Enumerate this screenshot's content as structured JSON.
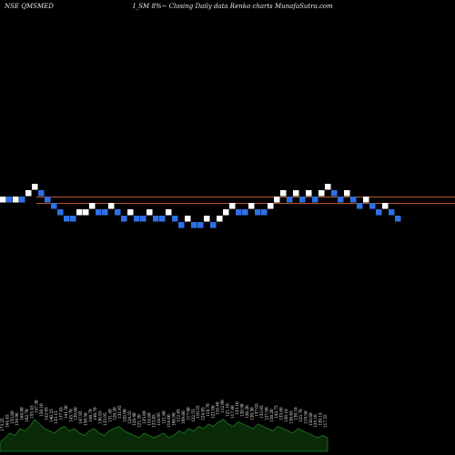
{
  "header": {
    "symbol_text": "NSE QMSMED",
    "title_text": "I_SM 8%~ Closing Daily data  Renko  charts MunafaSutra.com"
  },
  "colors": {
    "background": "#000000",
    "up_brick": "#ffffff",
    "down_brick": "#2f6fe6",
    "reference_line": "#b4562a",
    "volume_fill": "#0a2a0a",
    "volume_stroke": "#1e7a1e",
    "label_text": "#f0f0f0"
  },
  "chart_data": {
    "type": "renko",
    "title": "I_SM 8%~ Closing Daily data  Renko  charts MunafaSutra.com",
    "legend": "none",
    "reference_lines": [
      2,
      1
    ],
    "bricks": [
      {
        "d": "up",
        "v": 1
      },
      {
        "d": "down",
        "v": 1
      },
      {
        "d": "up",
        "v": 1
      },
      {
        "d": "down",
        "v": 1
      },
      {
        "d": "up",
        "v": 2
      },
      {
        "d": "up",
        "v": 3
      },
      {
        "d": "down",
        "v": 2
      },
      {
        "d": "down",
        "v": 1
      },
      {
        "d": "down",
        "v": 0
      },
      {
        "d": "down",
        "v": -1
      },
      {
        "d": "down",
        "v": -2
      },
      {
        "d": "down",
        "v": -2
      },
      {
        "d": "up",
        "v": -1
      },
      {
        "d": "up",
        "v": -1
      },
      {
        "d": "up",
        "v": 0
      },
      {
        "d": "down",
        "v": -1
      },
      {
        "d": "down",
        "v": -1
      },
      {
        "d": "up",
        "v": 0
      },
      {
        "d": "down",
        "v": -1
      },
      {
        "d": "down",
        "v": -2
      },
      {
        "d": "up",
        "v": -1
      },
      {
        "d": "down",
        "v": -2
      },
      {
        "d": "down",
        "v": -2
      },
      {
        "d": "up",
        "v": -1
      },
      {
        "d": "down",
        "v": -2
      },
      {
        "d": "down",
        "v": -2
      },
      {
        "d": "up",
        "v": -1
      },
      {
        "d": "down",
        "v": -2
      },
      {
        "d": "down",
        "v": -3
      },
      {
        "d": "up",
        "v": -2
      },
      {
        "d": "down",
        "v": -3
      },
      {
        "d": "down",
        "v": -3
      },
      {
        "d": "up",
        "v": -2
      },
      {
        "d": "down",
        "v": -3
      },
      {
        "d": "up",
        "v": -2
      },
      {
        "d": "up",
        "v": -1
      },
      {
        "d": "up",
        "v": 0
      },
      {
        "d": "down",
        "v": -1
      },
      {
        "d": "down",
        "v": -1
      },
      {
        "d": "up",
        "v": 0
      },
      {
        "d": "down",
        "v": -1
      },
      {
        "d": "down",
        "v": -1
      },
      {
        "d": "up",
        "v": 0
      },
      {
        "d": "up",
        "v": 1
      },
      {
        "d": "up",
        "v": 2
      },
      {
        "d": "down",
        "v": 1
      },
      {
        "d": "up",
        "v": 2
      },
      {
        "d": "down",
        "v": 1
      },
      {
        "d": "up",
        "v": 2
      },
      {
        "d": "down",
        "v": 1
      },
      {
        "d": "up",
        "v": 2
      },
      {
        "d": "up",
        "v": 3
      },
      {
        "d": "down",
        "v": 2
      },
      {
        "d": "down",
        "v": 1
      },
      {
        "d": "up",
        "v": 2
      },
      {
        "d": "down",
        "v": 1
      },
      {
        "d": "down",
        "v": 0
      },
      {
        "d": "up",
        "v": 1
      },
      {
        "d": "down",
        "v": 0
      },
      {
        "d": "down",
        "v": -1
      },
      {
        "d": "up",
        "v": 0
      },
      {
        "d": "down",
        "v": -1
      },
      {
        "d": "down",
        "v": -2
      }
    ],
    "volume_labels": [
      "173.25",
      "164.45",
      "155.80",
      "154.96",
      "168.00",
      "162.70",
      "155.45",
      "147.30",
      "150.10",
      "142.93",
      "140.25",
      "133.15",
      "137.45",
      "141.50",
      "145.70",
      "139.60",
      "147.95",
      "150.58",
      "148.79",
      "140.70",
      "136.85",
      "133.95",
      "131.49",
      "126.20",
      "131.95",
      "128.90",
      "124.55",
      "128.40",
      "121.39",
      "125.00",
      "118.60",
      "123.85",
      "116.95",
      "121.60",
      "114.60",
      "108.98",
      "112.65",
      "109.60",
      "117.00",
      "122.55",
      "110.55",
      "124.05",
      "118.70",
      "121.06",
      "116.40",
      "112.99",
      "121.10",
      "117.40",
      "123.10",
      "128.90",
      "126.20",
      "130.50",
      "137.05",
      "133.95",
      "127.90",
      "138.20",
      "142.75",
      "133.60",
      "139.10",
      "136.65",
      "130.10",
      "125.70",
      "119.50",
      "128.60",
      "124.10",
      "120.14",
      "117.55"
    ],
    "volume_profile": [
      0.2,
      0.3,
      0.4,
      0.35,
      0.5,
      0.45,
      0.55,
      0.7,
      0.6,
      0.5,
      0.45,
      0.4,
      0.5,
      0.55,
      0.45,
      0.5,
      0.4,
      0.35,
      0.45,
      0.5,
      0.4,
      0.35,
      0.45,
      0.5,
      0.55,
      0.45,
      0.4,
      0.35,
      0.3,
      0.4,
      0.35,
      0.3,
      0.35,
      0.4,
      0.3,
      0.35,
      0.45,
      0.4,
      0.5,
      0.45,
      0.55,
      0.5,
      0.6,
      0.55,
      0.65,
      0.7,
      0.6,
      0.55,
      0.65,
      0.6,
      0.55,
      0.5,
      0.6,
      0.55,
      0.5,
      0.45,
      0.55,
      0.5,
      0.45,
      0.4,
      0.5,
      0.45,
      0.4,
      0.35,
      0.3,
      0.35,
      0.3
    ]
  }
}
